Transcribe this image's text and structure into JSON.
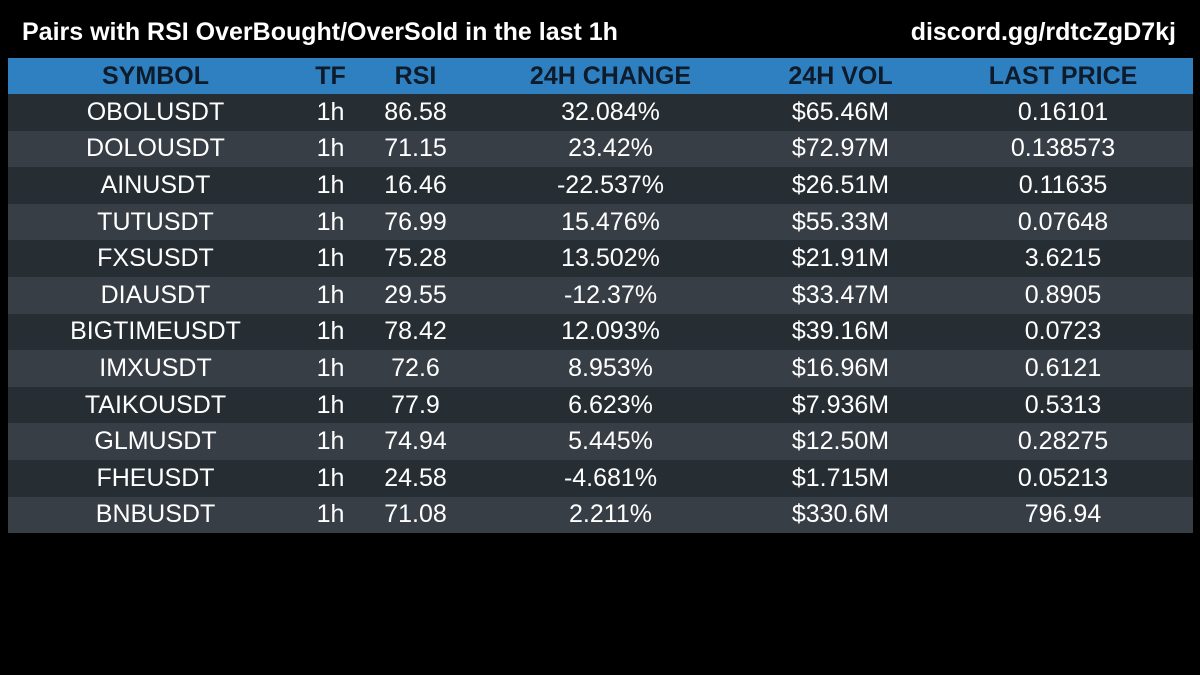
{
  "header": {
    "title": "Pairs with RSI OverBought/OverSold in the last 1h",
    "link": "discord.gg/rdtcZgD7kj"
  },
  "table": {
    "columns": [
      "SYMBOL",
      "TF",
      "RSI",
      "24H CHANGE",
      "24H VOL",
      "LAST PRICE"
    ],
    "rows": [
      [
        "OBOLUSDT",
        "1h",
        "86.58",
        "32.084%",
        "$65.46M",
        "0.16101"
      ],
      [
        "DOLOUSDT",
        "1h",
        "71.15",
        "23.42%",
        "$72.97M",
        "0.138573"
      ],
      [
        "AINUSDT",
        "1h",
        "16.46",
        "-22.537%",
        "$26.51M",
        "0.11635"
      ],
      [
        "TUTUSDT",
        "1h",
        "76.99",
        "15.476%",
        "$55.33M",
        "0.07648"
      ],
      [
        "FXSUSDT",
        "1h",
        "75.28",
        "13.502%",
        "$21.91M",
        "3.6215"
      ],
      [
        "DIAUSDT",
        "1h",
        "29.55",
        "-12.37%",
        "$33.47M",
        "0.8905"
      ],
      [
        "BIGTIMEUSDT",
        "1h",
        "78.42",
        "12.093%",
        "$39.16M",
        "0.0723"
      ],
      [
        "IMXUSDT",
        "1h",
        "72.6",
        "8.953%",
        "$16.96M",
        "0.6121"
      ],
      [
        "TAIKOUSDT",
        "1h",
        "77.9",
        "6.623%",
        "$7.936M",
        "0.5313"
      ],
      [
        "GLMUSDT",
        "1h",
        "74.94",
        "5.445%",
        "$12.50M",
        "0.28275"
      ],
      [
        "FHEUSDT",
        "1h",
        "24.58",
        "-4.681%",
        "$1.715M",
        "0.05213"
      ],
      [
        "BNBUSDT",
        "1h",
        "71.08",
        "2.211%",
        "$330.6M",
        "796.94"
      ]
    ]
  },
  "colors": {
    "background": "#000000",
    "header_row": "#2f80c1",
    "header_text": "#0d1b2a",
    "row_dark": "#262d33",
    "row_light": "#383e45",
    "text": "#ffffff"
  }
}
